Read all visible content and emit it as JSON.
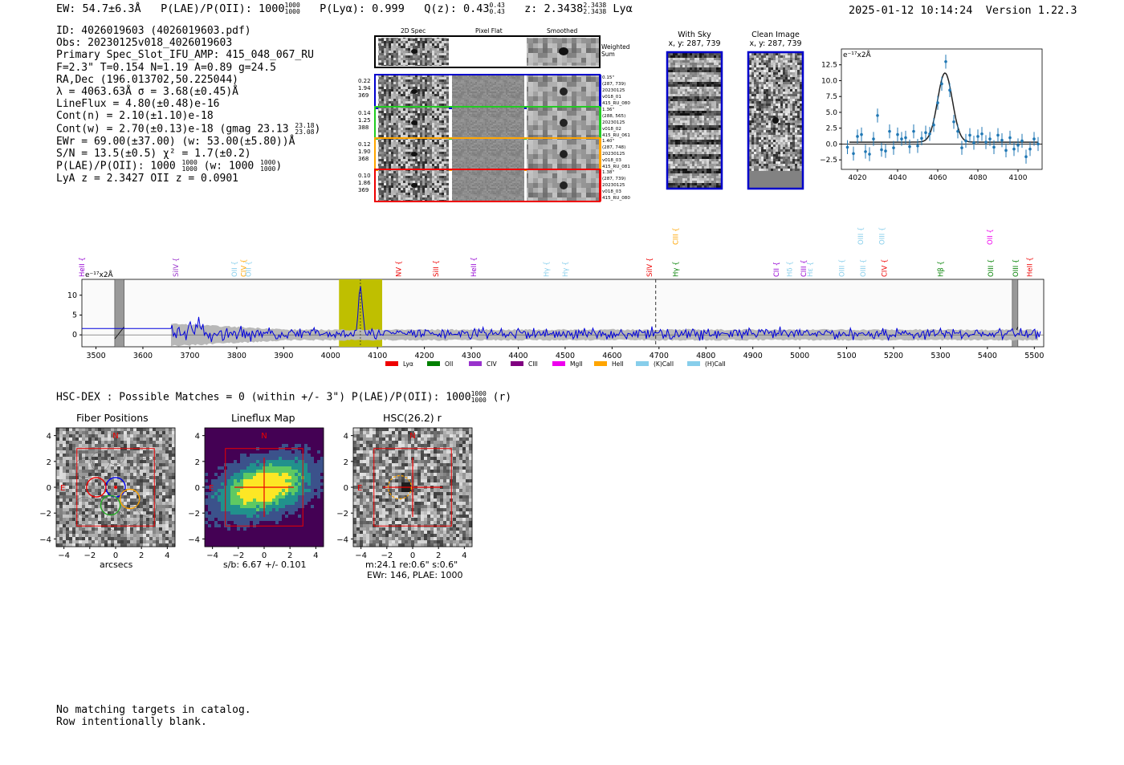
{
  "header": {
    "ew": "EW: 54.7±6.3Å",
    "plae_label": "P(LAE)/P(OII): 1000",
    "plae_hi": "1000",
    "plae_lo": "1000",
    "plya": "P(Lyα): 0.999",
    "qz": "Q(z): 0.43",
    "qz_hi": "0.43",
    "qz_lo": "0.43",
    "z": "z: 2.3438",
    "z_hi": "2.3438",
    "z_lo": "2.3438",
    "z_line": "Lyα",
    "timestamp": "2025-01-12 10:14:24",
    "version": "Version 1.22.3"
  },
  "info": {
    "id": "ID: 4026019603 (4026019603.pdf)",
    "obs": "Obs: 20230125v018_4026019603",
    "primary": "Primary Spec_Slot_IFU_AMP: 415_048_067_RU",
    "fwhm": "F=2.3\"  T=0.154  N=1.19  A=0.89  g=24.5",
    "radec": "RA,Dec (196.013702,50.225044)",
    "wave": "λ = 4063.63Å  σ = 3.68(±0.45)Å",
    "lineflux": "LineFlux = 4.80(±0.48)e-16",
    "contn": "Cont(n) = 2.10(±1.10)e-18",
    "contw": "Cont(w) = 2.70(±0.13)e-18 (gmag 23.13",
    "gmag_hi": "23.18",
    "gmag_lo": "23.08",
    "ewr": "EWr = 69.00(±37.00) (w: 53.00(±5.80))Å",
    "sn": "S/N = 13.5(±0.5)  χ² = 1.7(±0.2)",
    "plae": "P(LAE)/P(OII): 1000",
    "plae_w": "(w: 1000",
    "plae_w_close": ")",
    "frac_hi": "1000",
    "frac_lo": "1000",
    "lya_z": "LyA z = 2.3427  OII z = 0.0901"
  },
  "cutouts": {
    "col_headers": [
      "2D Spec",
      "Pixel Flat",
      "Smoothed"
    ],
    "weighted_sum": "Weighted\nSum",
    "rows": [
      {
        "color": "#0000cc",
        "nums": [
          "0.22",
          "1.94",
          "369"
        ],
        "meta": [
          "0.15\"",
          "(287, 739)",
          "20230125",
          "v018_01",
          "415_RU_080"
        ]
      },
      {
        "color": "#22cc22",
        "nums": [
          "0.14",
          "1.25",
          "388"
        ],
        "meta": [
          "1.36\"",
          "(288, 565)",
          "20230125",
          "v018_02",
          "415_RU_061"
        ]
      },
      {
        "color": "#ffa500",
        "nums": [
          "0.12",
          "1.90",
          "368"
        ],
        "meta": [
          "1.40\"",
          "(287, 748)",
          "20230125",
          "v018_03",
          "415_RU_081"
        ]
      },
      {
        "color": "#ee0000",
        "nums": [
          "0.10",
          "1.86",
          "369"
        ],
        "meta": [
          "1.38\"",
          "(287, 739)",
          "20230125",
          "v018_03",
          "415_RU_080"
        ]
      }
    ],
    "with_sky_title": "With Sky",
    "with_sky_xy": "x, y: 287, 739",
    "clean_title": "Clean Image",
    "clean_xy": "x, y: 287, 739"
  },
  "chart_data": [
    {
      "type": "scatter",
      "name": "line-fit",
      "ylabel_units": "e⁻¹⁷x2Å",
      "x": [
        4015,
        4018,
        4020,
        4022,
        4024,
        4026,
        4028,
        4030,
        4032,
        4034,
        4036,
        4038,
        4040,
        4042,
        4044,
        4046,
        4048,
        4050,
        4052,
        4054,
        4056,
        4058,
        4060,
        4062,
        4064,
        4066,
        4068,
        4070,
        4072,
        4074,
        4076,
        4078,
        4080,
        4082,
        4084,
        4086,
        4088,
        4090,
        4092,
        4094,
        4096,
        4098,
        4100,
        4102,
        4104,
        4106,
        4108,
        4110
      ],
      "y": [
        -0.5,
        -1.5,
        1.2,
        1.5,
        -1.2,
        -1.6,
        0.8,
        4.5,
        -0.9,
        -1.1,
        2.0,
        -0.6,
        1.5,
        0.8,
        1.0,
        -0.4,
        2.0,
        -0.3,
        0.9,
        1.8,
        1.6,
        3.0,
        6.5,
        9.5,
        13.0,
        8.5,
        3.5,
        2.0,
        -0.6,
        0.5,
        1.4,
        0.2,
        1.2,
        1.6,
        0.3,
        0.8,
        -0.5,
        1.4,
        0.6,
        -1.0,
        1.0,
        -0.8,
        -0.2,
        0.5,
        -2.0,
        -0.8,
        0.8,
        0.0
      ],
      "fit_center": 4063.6,
      "fit_sigma": 3.68,
      "fit_amp": 10.9,
      "fit_continuum": 0.3,
      "xlim": [
        4012,
        4112
      ],
      "ylim": [
        -4,
        15
      ],
      "xticks": [
        4020,
        4040,
        4060,
        4080,
        4100
      ],
      "yticks": [
        -2.5,
        0.0,
        2.5,
        5.0,
        7.5,
        10.0,
        12.5
      ],
      "xtick_labels": [
        "4020",
        "4040",
        "4060",
        "4080",
        "4100"
      ],
      "ytick_labels": [
        "−2.5",
        "0.0",
        "2.5",
        "5.0",
        "7.5",
        "10.0",
        "12.5"
      ]
    },
    {
      "type": "line",
      "name": "full-spectrum",
      "ylabel_units": "e⁻¹⁷x2Å",
      "xlim": [
        3470,
        5520
      ],
      "ylim": [
        -3,
        14
      ],
      "xticks": [
        3500,
        3600,
        3700,
        3800,
        3900,
        4000,
        4100,
        4200,
        4300,
        4400,
        4500,
        4600,
        4700,
        4800,
        4900,
        5000,
        5100,
        5200,
        5300,
        5400,
        5500
      ],
      "xtick_labels": [
        "3500",
        "3600",
        "3700",
        "3800",
        "3900",
        "4000",
        "4100",
        "4200",
        "4300",
        "4400",
        "4500",
        "4600",
        "4700",
        "4800",
        "4900",
        "5000",
        "5100",
        "5200",
        "5300",
        "5400",
        "5500"
      ],
      "yticks": [
        0,
        5,
        10
      ],
      "ytick_labels": [
        "0",
        "5",
        "10"
      ],
      "highlight_range": [
        4018,
        4110
      ],
      "peak_wavelength": 4063.6,
      "peak_value": 12.5,
      "dashed_line": 4693,
      "masked_ranges": [
        [
          3540,
          3560
        ],
        [
          5453,
          5465
        ]
      ],
      "line_labels": [
        {
          "label": "HeII",
          "x": 3470,
          "color": "#9400d3",
          "row": 1
        },
        {
          "label": "SiIV",
          "x": 3670,
          "color": "#9932cc",
          "row": 1
        },
        {
          "label": "OII",
          "x": 3795,
          "color": "#87ceeb",
          "row": 1
        },
        {
          "label": "CIV",
          "x": 3815,
          "color": "#ffa500",
          "row": 1
        },
        {
          "label": "OII",
          "x": 3825,
          "color": "#87ceeb",
          "row": 1
        },
        {
          "label": "NV",
          "x": 4145,
          "color": "#ee0000",
          "row": 1
        },
        {
          "label": "SiII",
          "x": 4225,
          "color": "#ee0000",
          "row": 1
        },
        {
          "label": "HeII",
          "x": 4305,
          "color": "#9400d3",
          "row": 1
        },
        {
          "label": "Hγ",
          "x": 4460,
          "color": "#87ceeb",
          "row": 1
        },
        {
          "label": "Hγ",
          "x": 4500,
          "color": "#87ceeb",
          "row": 1
        },
        {
          "label": "SiIV",
          "x": 4680,
          "color": "#ee0000",
          "row": 1
        },
        {
          "label": "CIII",
          "x": 4735,
          "color": "#ffa500",
          "row": 0
        },
        {
          "label": "Hγ",
          "x": 4735,
          "color": "#008000",
          "row": 1
        },
        {
          "label": "CII",
          "x": 4950,
          "color": "#9400d3",
          "row": 1
        },
        {
          "label": "Hδ",
          "x": 4978,
          "color": "#87ceeb",
          "row": 1
        },
        {
          "label": "CIII",
          "x": 5008,
          "color": "#9400d3",
          "row": 1
        },
        {
          "label": "Hε",
          "x": 5022,
          "color": "#87ceeb",
          "row": 1
        },
        {
          "label": "OIII",
          "x": 5090,
          "color": "#87ceeb",
          "row": 1
        },
        {
          "label": "OIII",
          "x": 5130,
          "color": "#87ceeb",
          "row": 0
        },
        {
          "label": "OIII",
          "x": 5135,
          "color": "#87ceeb",
          "row": 1
        },
        {
          "label": "OIII",
          "x": 5175,
          "color": "#87ceeb",
          "row": 0
        },
        {
          "label": "CIV",
          "x": 5180,
          "color": "#ee0000",
          "row": 1
        },
        {
          "label": "Hβ",
          "x": 5300,
          "color": "#008000",
          "row": 1
        },
        {
          "label": "OII",
          "x": 5405,
          "color": "#ee00ee",
          "row": 0
        },
        {
          "label": "OIII",
          "x": 5407,
          "color": "#008000",
          "row": 1
        },
        {
          "label": "OIII",
          "x": 5460,
          "color": "#008000",
          "row": 1
        },
        {
          "label": "HeII",
          "x": 5490,
          "color": "#ee0000",
          "row": 1
        }
      ],
      "legend": [
        {
          "label": "Lyα",
          "color": "#ee0000"
        },
        {
          "label": "OII",
          "color": "#008000"
        },
        {
          "label": "CIV",
          "color": "#9932cc"
        },
        {
          "label": "CIII",
          "color": "#800080"
        },
        {
          "label": "MgII",
          "color": "#ee00ee"
        },
        {
          "label": "HeII",
          "color": "#ffa500"
        },
        {
          "label": "(K)CaII",
          "color": "#87ceeb"
        },
        {
          "label": "(H)CaII",
          "color": "#87ceeb"
        }
      ]
    }
  ],
  "hsc": {
    "line_prefix": "HSC-DEX : Possible Matches = 0 (within +/- 3\")  P(LAE)/P(OII): 1000",
    "frac_hi": "1000",
    "frac_lo": "1000",
    "band": "(r)"
  },
  "panels": {
    "fiber_title": "Fiber Positions",
    "lineflux_title": "Lineflux Map",
    "hsc_title": "HSC(26.2) r",
    "ticks": [
      "−4",
      "−2",
      "0",
      "2",
      "4"
    ],
    "yticks": [
      "4",
      "2",
      "0",
      "−2",
      "−4"
    ],
    "fiber_xlabel": "arcsecs",
    "lineflux_xlabel": "s/b: 6.67 +/- 0.101",
    "hsc_xlabel1": "m:24.1  re:0.6\"  s:0.6\"",
    "hsc_xlabel2": "EWr: 146, PLAE: 1000",
    "north": "N",
    "east": "E"
  },
  "footer": {
    "line1": "No matching targets in catalog.",
    "line2": "Row intentionally blank."
  }
}
